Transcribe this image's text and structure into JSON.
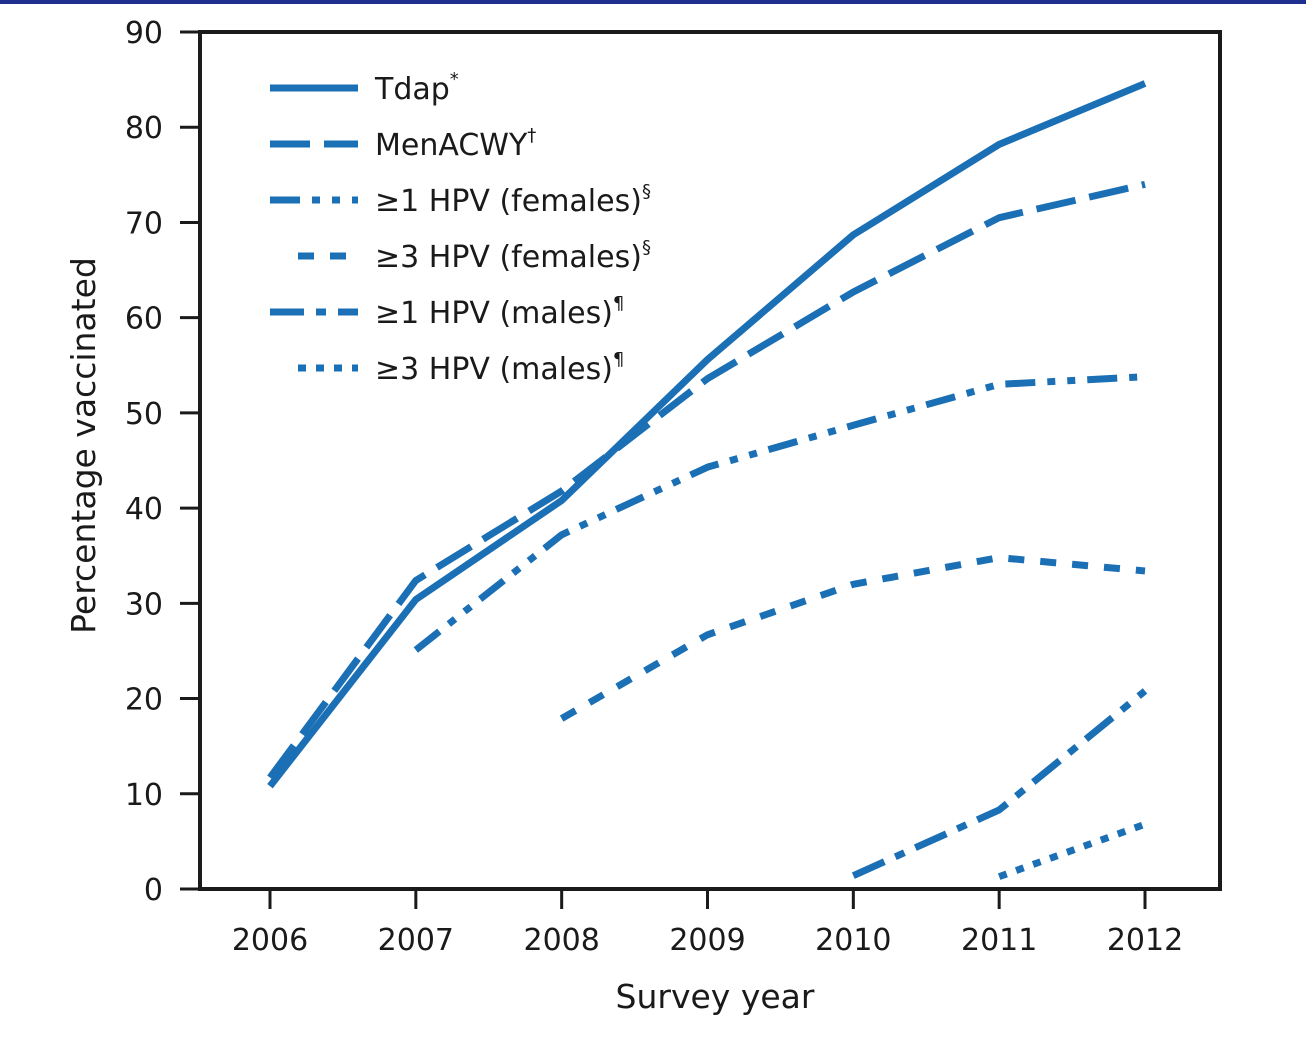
{
  "chart_data": {
    "type": "line",
    "title": "",
    "xlabel": "Survey year",
    "ylabel": "Percentage vaccinated",
    "x": [
      2006,
      2007,
      2008,
      2009,
      2010,
      2011,
      2012
    ],
    "xlim": [
      2005.5,
      2012.5
    ],
    "ylim": [
      0,
      90
    ],
    "yticks": [
      0,
      10,
      20,
      30,
      40,
      50,
      60,
      70,
      80,
      90
    ],
    "grid": false,
    "legend_position": "top-left",
    "color": "#1a6fb5",
    "series": [
      {
        "name": "Tdap",
        "sup": "*",
        "dash": "solid",
        "x": [
          2006,
          2007,
          2008,
          2009,
          2010,
          2011,
          2012
        ],
        "values": [
          10.8,
          30.4,
          40.8,
          55.6,
          68.7,
          78.2,
          84.6
        ]
      },
      {
        "name": "MenACWY",
        "sup": "†",
        "dash": "dashed",
        "x": [
          2006,
          2007,
          2008,
          2009,
          2010,
          2011,
          2012
        ],
        "values": [
          11.7,
          32.4,
          41.8,
          53.6,
          62.7,
          70.5,
          74.0
        ]
      },
      {
        "name": "≥1 HPV (females)",
        "sup": "§",
        "dash": "dash-dot-dot",
        "x": [
          2007,
          2008,
          2009,
          2010,
          2011,
          2012
        ],
        "values": [
          25.1,
          37.2,
          44.3,
          48.7,
          53.0,
          53.8
        ]
      },
      {
        "name": "≥3 HPV (females)",
        "sup": "§",
        "dash": "short-dash",
        "x": [
          2008,
          2009,
          2010,
          2011,
          2012
        ],
        "values": [
          17.9,
          26.7,
          32.0,
          34.8,
          33.4
        ]
      },
      {
        "name": "≥1 HPV (males)",
        "sup": "¶",
        "dash": "dash-dot",
        "x": [
          2010,
          2011,
          2012
        ],
        "values": [
          1.4,
          8.3,
          20.8
        ]
      },
      {
        "name": "≥3 HPV (males)",
        "sup": "¶",
        "dash": "dotted",
        "x": [
          2011,
          2012
        ],
        "values": [
          1.3,
          6.8
        ]
      }
    ]
  }
}
